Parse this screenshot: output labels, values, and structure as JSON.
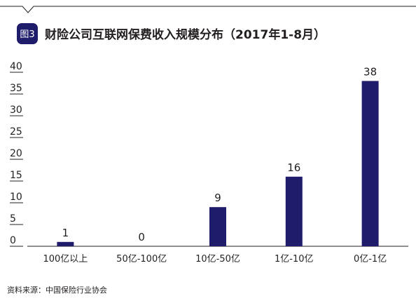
{
  "figure": {
    "badge": "图3",
    "title": "财险公司互联网保费收入规模分布（2017年1-8月）",
    "source": "资料来源：中国保险行业协会"
  },
  "colors": {
    "bar": "#1f1c6b",
    "badge_bg": "#1f1c6b",
    "badge_text": "#ffffff",
    "text": "#231f20",
    "rule": "#231f20"
  },
  "chart_data": {
    "type": "bar",
    "title": "财险公司互联网保费收入规模分布（2017年1-8月）",
    "categories": [
      "100亿以上",
      "50亿-100亿",
      "10亿-50亿",
      "1亿-10亿",
      "0亿-1亿"
    ],
    "values": [
      1,
      0,
      9,
      16,
      38
    ],
    "data_labels": [
      "1",
      "0",
      "9",
      "16",
      "38"
    ],
    "ylim": [
      0,
      40
    ],
    "yticks": [
      0,
      5,
      10,
      15,
      20,
      25,
      30,
      35,
      40
    ],
    "grid": false,
    "legend": "none",
    "xlabel": "",
    "ylabel": ""
  }
}
